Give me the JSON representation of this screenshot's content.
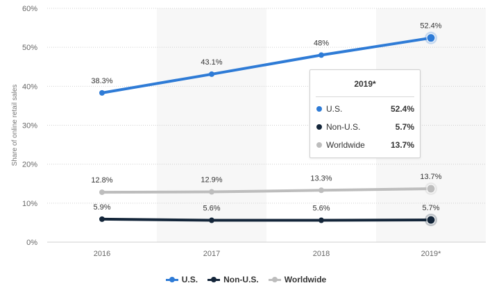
{
  "chart_data": {
    "type": "line",
    "categories": [
      "2016",
      "2017",
      "2018",
      "2019*"
    ],
    "series": [
      {
        "name": "U.S.",
        "color": "#2e7bd6",
        "values": [
          38.3,
          43.1,
          48,
          52.4
        ],
        "labels": [
          "38.3%",
          "43.1%",
          "48%",
          "52.4%"
        ]
      },
      {
        "name": "Non-U.S.",
        "color": "#14263a",
        "values": [
          5.9,
          5.6,
          5.6,
          5.7
        ],
        "labels": [
          "5.9%",
          "5.6%",
          "5.6%",
          "5.7%"
        ]
      },
      {
        "name": "Worldwide",
        "color": "#bdbdbd",
        "values": [
          12.8,
          12.9,
          13.3,
          13.7
        ],
        "labels": [
          "12.8%",
          "12.9%",
          "13.3%",
          "13.7%"
        ]
      }
    ],
    "ylabel": "Share of online retail sales",
    "ylim": [
      0,
      60
    ],
    "yticks": [
      "0%",
      "10%",
      "20%",
      "30%",
      "40%",
      "50%",
      "60%"
    ],
    "grid": true,
    "legend_position": "bottom-center",
    "highlighted_category": "2019*"
  },
  "tooltip": {
    "title": "2019*",
    "rows": [
      {
        "name": "U.S.",
        "value": "52.4%",
        "color": "#2e7bd6"
      },
      {
        "name": "Non-U.S.",
        "value": "5.7%",
        "color": "#14263a"
      },
      {
        "name": "Worldwide",
        "value": "13.7%",
        "color": "#bdbdbd"
      }
    ]
  },
  "legend": [
    {
      "label": "U.S.",
      "color": "#2e7bd6"
    },
    {
      "label": "Non-U.S.",
      "color": "#14263a"
    },
    {
      "label": "Worldwide",
      "color": "#bdbdbd"
    }
  ]
}
